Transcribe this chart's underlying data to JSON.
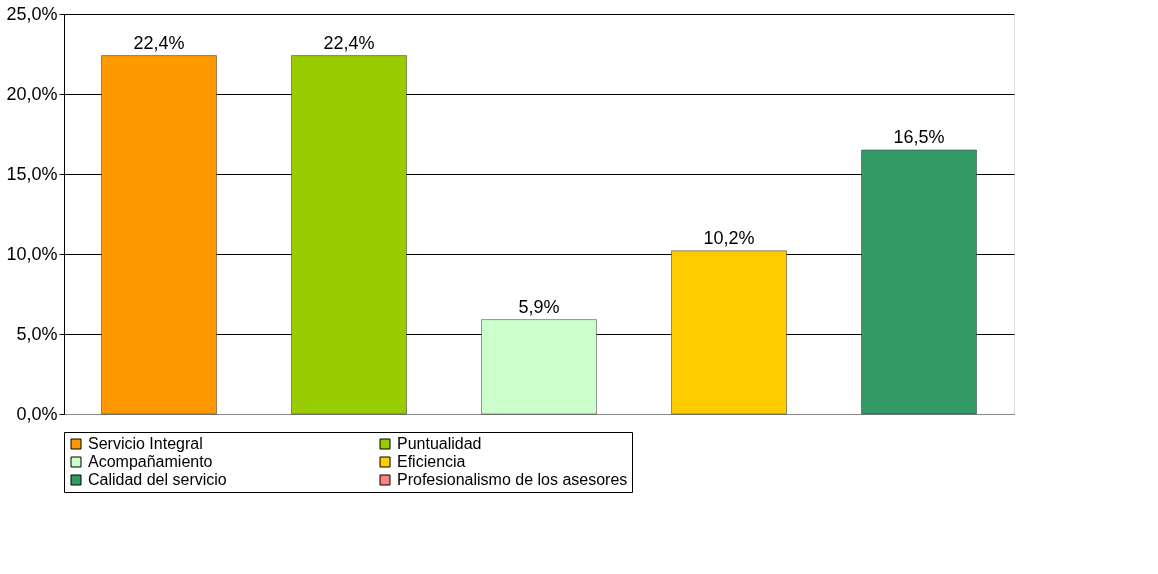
{
  "chart_data": {
    "type": "bar",
    "categories": [
      null
    ],
    "series": [
      {
        "name": "Servicio Integral",
        "color": "#ff9900",
        "values": [
          22.4
        ],
        "value_labels": [
          "22,4%"
        ]
      },
      {
        "name": "Puntualidad",
        "color": "#99cc00",
        "values": [
          22.4
        ],
        "value_labels": [
          "22,4%"
        ]
      },
      {
        "name": "Acompañamiento",
        "color": "#ccffcc",
        "values": [
          5.9
        ],
        "value_labels": [
          "5,9%"
        ]
      },
      {
        "name": "Eficiencia",
        "color": "#ffcc00",
        "values": [
          10.2
        ],
        "value_labels": [
          "10,2%"
        ]
      },
      {
        "name": "Calidad del servicio",
        "color": "#339966",
        "values": [
          16.5
        ],
        "value_labels": [
          "16,5%"
        ]
      },
      {
        "name": "Profesionalismo de los asesores",
        "color": "#ff8080",
        "values": [
          null
        ],
        "value_labels": [
          null
        ]
      }
    ],
    "ylim": [
      0,
      25
    ],
    "yticks": [
      {
        "value": 0,
        "label": "0,0%"
      },
      {
        "value": 5,
        "label": "5,0%"
      },
      {
        "value": 10,
        "label": "10,0%"
      },
      {
        "value": 15,
        "label": "15,0%"
      },
      {
        "value": 20,
        "label": "20,0%"
      },
      {
        "value": 25,
        "label": "25,0%"
      }
    ],
    "grid": "y",
    "legend": "bottom"
  }
}
